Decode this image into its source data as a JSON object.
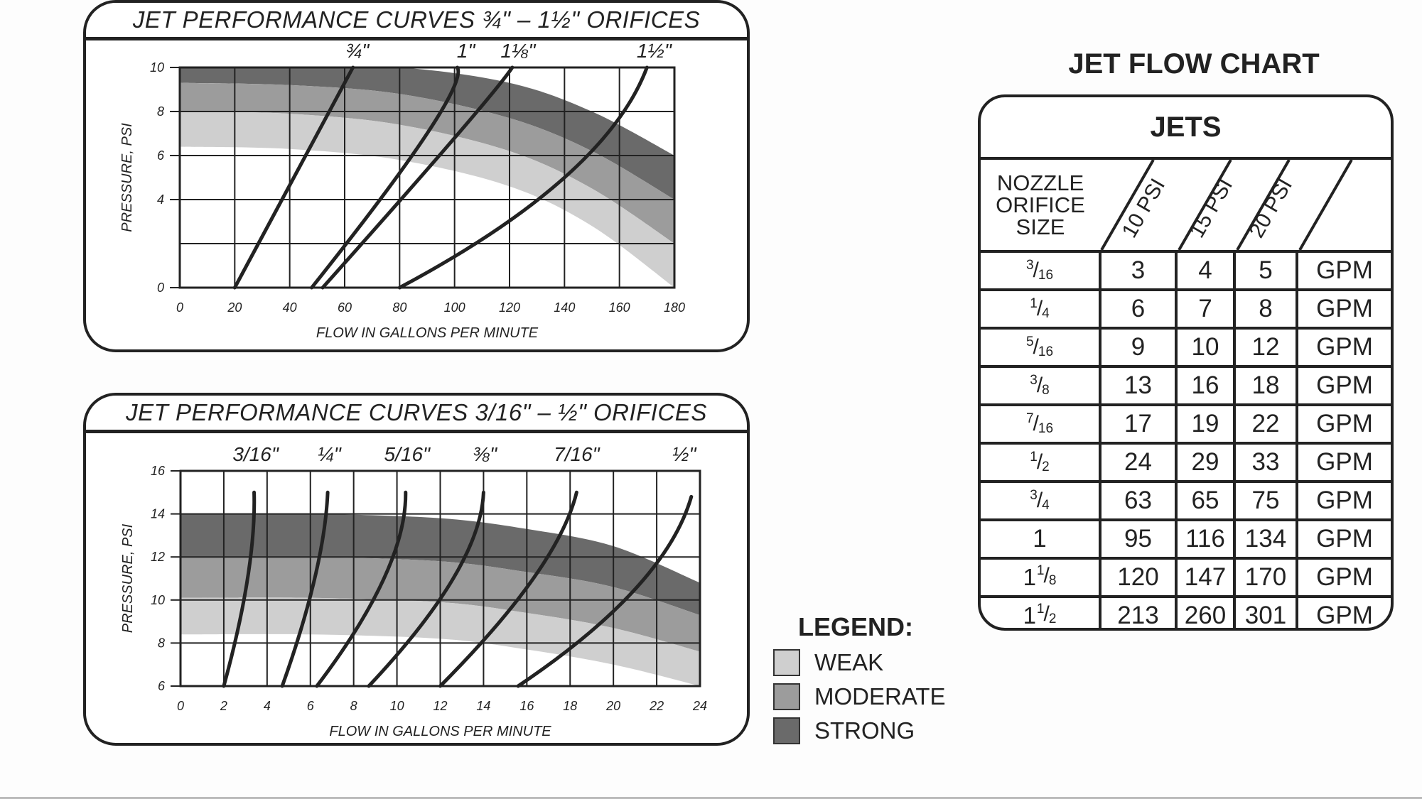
{
  "chart_data": [
    {
      "type": "line",
      "title": "JET PERFORMANCE CURVES ¾\" – 1½\" ORIFICES",
      "xlabel": "FLOW IN GALLONS PER MINUTE",
      "ylabel": "PRESSURE, PSI",
      "xlim": [
        0,
        180
      ],
      "ylim": [
        0,
        10
      ],
      "xticks": [
        0,
        20,
        40,
        60,
        80,
        100,
        120,
        140,
        160,
        180
      ],
      "yticks": [
        0,
        4,
        6,
        8,
        10
      ],
      "grid": true,
      "series": [
        {
          "name": "¾\"",
          "x": [
            20,
            45,
            63
          ],
          "y": [
            0,
            5.8,
            10
          ]
        },
        {
          "name": "1\"",
          "x": [
            48,
            90,
            101
          ],
          "y": [
            0,
            7.0,
            10
          ]
        },
        {
          "name": "1⅛\"",
          "x": [
            52,
            100,
            121
          ],
          "y": [
            0,
            6.8,
            10
          ]
        },
        {
          "name": "1½\"",
          "x": [
            80,
            140,
            170
          ],
          "y": [
            0,
            5.0,
            10
          ]
        }
      ],
      "bands": {
        "weak": {
          "upper": [
            6.4,
            6.3,
            5.8,
            4.6,
            2.8,
            0
          ],
          "lower": [
            6.4,
            6.3,
            5.8,
            4.6,
            2.8,
            0
          ]
        },
        "x": [
          0,
          40,
          80,
          120,
          150,
          180
        ],
        "weak_upper": [
          8.0,
          7.9,
          7.4,
          6.2,
          4.5,
          2.0
        ],
        "moderate_upper": [
          9.3,
          9.2,
          8.8,
          7.7,
          6.2,
          4.0
        ],
        "strong_upper": [
          10,
          10,
          10,
          9.3,
          8.0,
          6.0
        ],
        "weak_lower": [
          6.4,
          6.3,
          5.8,
          4.6,
          2.8,
          0
        ]
      }
    },
    {
      "type": "line",
      "title": "JET PERFORMANCE CURVES 3/16\" – ½\" ORIFICES",
      "xlabel": "FLOW IN GALLONS PER MINUTE",
      "ylabel": "PRESSURE, PSI",
      "xlim": [
        0,
        24
      ],
      "ylim": [
        6,
        16
      ],
      "xticks": [
        0,
        2,
        4,
        6,
        8,
        10,
        12,
        14,
        16,
        18,
        20,
        22,
        24
      ],
      "yticks": [
        6,
        8,
        10,
        12,
        14,
        16
      ],
      "grid": true,
      "series": [
        {
          "name": "3/16\"",
          "x": [
            2.0,
            3.1,
            3.4
          ],
          "y": [
            6,
            11,
            15
          ]
        },
        {
          "name": "¼\"",
          "x": [
            4.7,
            6.2,
            6.8
          ],
          "y": [
            6,
            11,
            15
          ]
        },
        {
          "name": "5/16\"",
          "x": [
            6.3,
            9.4,
            10.4
          ],
          "y": [
            6,
            11,
            15
          ]
        },
        {
          "name": "⅜\"",
          "x": [
            8.7,
            12.6,
            14.0
          ],
          "y": [
            6,
            11,
            15
          ]
        },
        {
          "name": "7/16\"",
          "x": [
            12.0,
            16.3,
            18.3
          ],
          "y": [
            6,
            11,
            15
          ]
        },
        {
          "name": "½\"",
          "x": [
            15.6,
            21.0,
            23.6
          ],
          "y": [
            6,
            10.5,
            14.8
          ]
        }
      ],
      "bands": {
        "x": [
          0,
          6,
          12,
          16,
          20,
          24
        ],
        "weak_lower": [
          8.4,
          8.4,
          8.2,
          7.7,
          7.0,
          6.0
        ],
        "weak_upper": [
          10.1,
          10.1,
          9.9,
          9.4,
          8.7,
          7.6
        ],
        "moderate_upper": [
          12.0,
          12.0,
          11.8,
          11.3,
          10.6,
          9.3
        ],
        "strong_upper": [
          14.0,
          14.0,
          13.8,
          13.3,
          12.5,
          10.8
        ]
      }
    },
    {
      "type": "table",
      "title": "JET FLOW CHART",
      "header": "JETS",
      "nozzle_label": [
        "NOZZLE",
        "ORIFICE",
        "SIZE"
      ],
      "columns": [
        "10 PSI",
        "15 PSI",
        "20 PSI"
      ],
      "unit": "GPM",
      "rows": [
        {
          "size": [
            "3",
            "16"
          ],
          "values": [
            3,
            4,
            5
          ]
        },
        {
          "size": [
            "1",
            "4"
          ],
          "values": [
            6,
            7,
            8
          ]
        },
        {
          "size": [
            "5",
            "16"
          ],
          "values": [
            9,
            10,
            12
          ]
        },
        {
          "size": [
            "3",
            "8"
          ],
          "values": [
            13,
            16,
            18
          ]
        },
        {
          "size": [
            "7",
            "16"
          ],
          "values": [
            17,
            19,
            22
          ]
        },
        {
          "size": [
            "1",
            "2"
          ],
          "values": [
            24,
            29,
            33
          ]
        },
        {
          "size": [
            "3",
            "4"
          ],
          "values": [
            63,
            65,
            75
          ]
        },
        {
          "size": [
            "1"
          ],
          "values": [
            95,
            116,
            134
          ]
        },
        {
          "size": [
            "1",
            "1",
            "8"
          ],
          "values": [
            120,
            147,
            170
          ]
        },
        {
          "size": [
            "1",
            "1",
            "2"
          ],
          "values": [
            213,
            260,
            301
          ]
        }
      ]
    }
  ],
  "legend": {
    "title": "LEGEND:",
    "items": [
      {
        "label": "WEAK",
        "color": "#cfcfcf"
      },
      {
        "label": "MODERATE",
        "color": "#9c9c9c"
      },
      {
        "label": "STRONG",
        "color": "#6a6a6a"
      }
    ]
  }
}
